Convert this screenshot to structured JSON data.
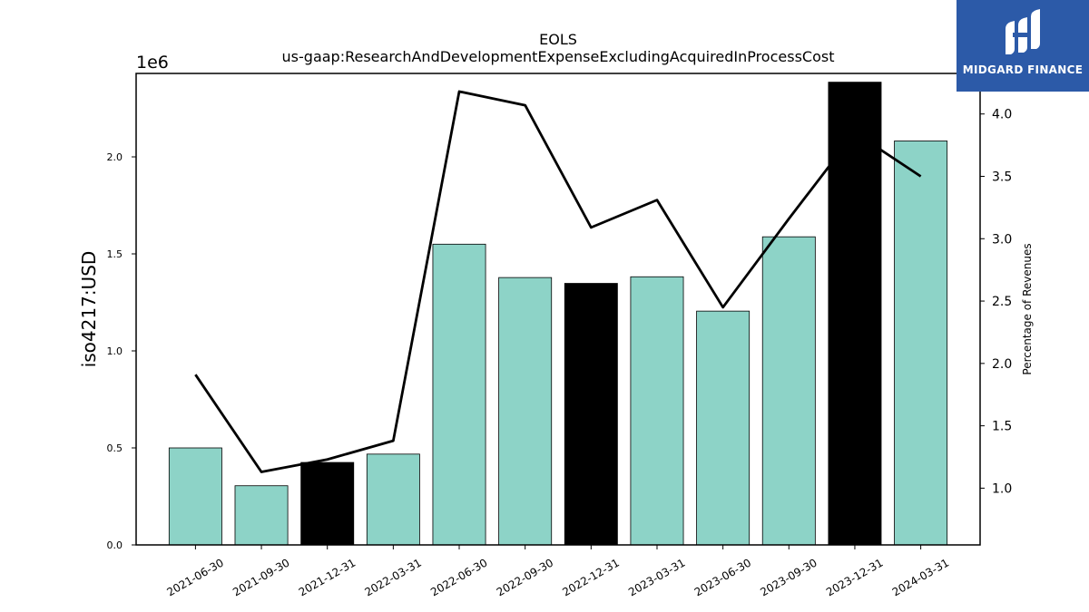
{
  "chart_data": {
    "type": "bar",
    "title": "EOLS",
    "subtitle": "us-gaap:ResearchAndDevelopmentExpenseExcludingAcquiredInProcessCost",
    "ylabel": "iso4217:USD",
    "y_offset_label": "1e6",
    "y2label": "Percentage of Revenues",
    "categories": [
      "2021-06-30",
      "2021-09-30",
      "2021-12-31",
      "2022-03-31",
      "2022-06-30",
      "2022-09-30",
      "2022-12-31",
      "2023-03-31",
      "2023-06-30",
      "2023-09-30",
      "2023-12-31",
      "2024-03-31"
    ],
    "bar_values": [
      500000,
      305000,
      425000,
      468000,
      1550000,
      1378000,
      1348000,
      1382000,
      1205000,
      1588000,
      2385000,
      2082000
    ],
    "bar_colors": [
      "#8dd3c7",
      "#8dd3c7",
      "#000000",
      "#8dd3c7",
      "#8dd3c7",
      "#8dd3c7",
      "#000000",
      "#8dd3c7",
      "#8dd3c7",
      "#8dd3c7",
      "#000000",
      "#8dd3c7"
    ],
    "line_values": [
      1.91,
      1.13,
      1.23,
      1.38,
      4.18,
      4.07,
      3.09,
      3.31,
      2.45,
      3.16,
      3.85,
      3.5
    ],
    "line_color": "#000000",
    "ylim": [
      0,
      2430000
    ],
    "y2lim": [
      0.545,
      4.325
    ],
    "yticks": [
      0,
      500000,
      1000000,
      1500000,
      2000000
    ],
    "ytick_labels": [
      "0.0",
      "0.5",
      "1.0",
      "1.5",
      "2.0"
    ],
    "y2ticks": [
      1.0,
      1.5,
      2.0,
      2.5,
      3.0,
      3.5,
      4.0
    ],
    "y2tick_labels": [
      "1.0",
      "1.5",
      "2.0",
      "2.5",
      "3.0",
      "3.5",
      "4.0"
    ],
    "grid": false
  },
  "logo": {
    "brand": "MIDGARD FINANCE"
  }
}
